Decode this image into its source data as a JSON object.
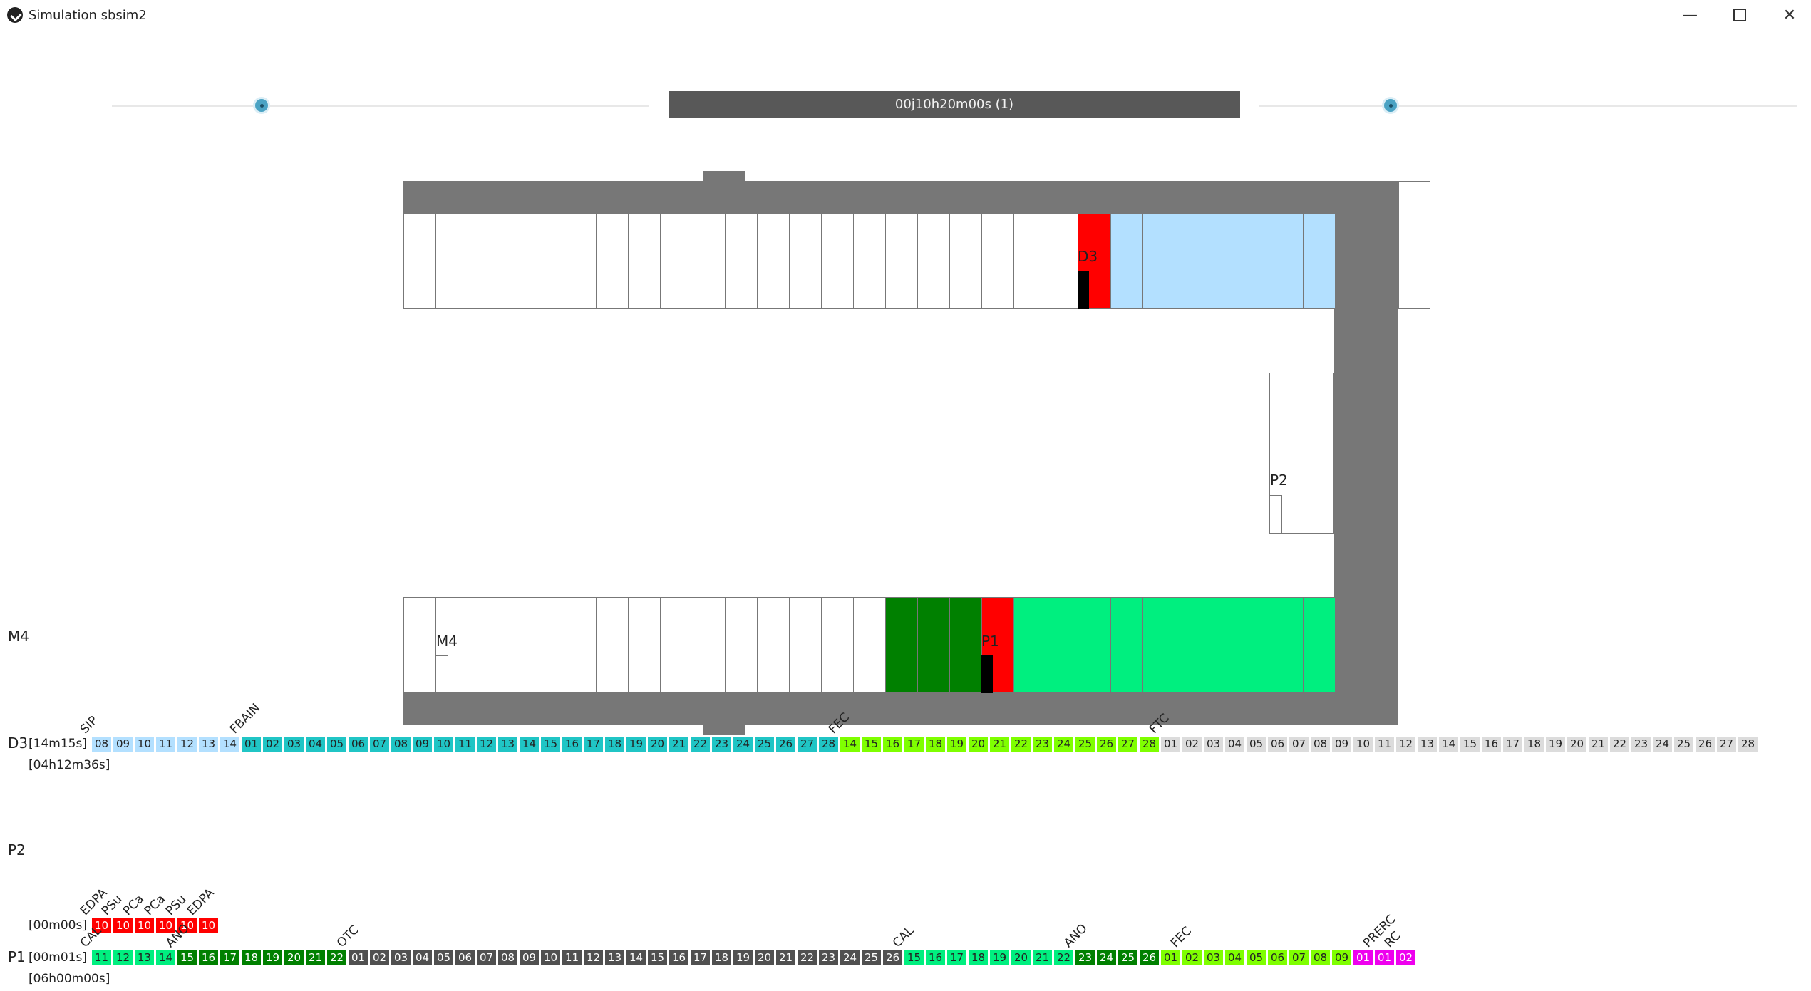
{
  "window": {
    "title": "Simulation sbsim2"
  },
  "controls": {
    "time_display": "00j10h20m00s (1)"
  },
  "plant": {
    "labels": {
      "d3": "D3",
      "p2": "P2",
      "m4": "M4",
      "p1": "P1"
    },
    "colors": {
      "wall": "#777777",
      "red": "#ff0000",
      "light_blue": "#b3e0ff",
      "dark_green": "#008000",
      "bright_green": "#00ef7f"
    }
  },
  "rows": {
    "m4": {
      "label": "M4"
    },
    "d3": {
      "label": "D3",
      "time1": "[14m15s]",
      "time2": "[04h12m36s]",
      "markers": [
        {
          "text": "SIP",
          "at": 0
        },
        {
          "text": "FBAIN",
          "at": 7
        },
        {
          "text": "FEC",
          "at": 35
        },
        {
          "text": "FTC",
          "at": 50
        }
      ],
      "tiles": [
        {
          "t": "08",
          "c": "#b3e0ff"
        },
        {
          "t": "09",
          "c": "#b3e0ff"
        },
        {
          "t": "10",
          "c": "#b3e0ff"
        },
        {
          "t": "11",
          "c": "#b3e0ff"
        },
        {
          "t": "12",
          "c": "#b3e0ff"
        },
        {
          "t": "13",
          "c": "#b3e0ff"
        },
        {
          "t": "14",
          "c": "#b3e0ff"
        },
        {
          "t": "01",
          "c": "#20c5c5"
        },
        {
          "t": "02",
          "c": "#20c5c5"
        },
        {
          "t": "03",
          "c": "#20c5c5"
        },
        {
          "t": "04",
          "c": "#20c5c5"
        },
        {
          "t": "05",
          "c": "#20c5c5"
        },
        {
          "t": "06",
          "c": "#20c5c5"
        },
        {
          "t": "07",
          "c": "#20c5c5"
        },
        {
          "t": "08",
          "c": "#20c5c5"
        },
        {
          "t": "09",
          "c": "#20c5c5"
        },
        {
          "t": "10",
          "c": "#20c5c5"
        },
        {
          "t": "11",
          "c": "#20c5c5"
        },
        {
          "t": "12",
          "c": "#20c5c5"
        },
        {
          "t": "13",
          "c": "#20c5c5"
        },
        {
          "t": "14",
          "c": "#20c5c5"
        },
        {
          "t": "15",
          "c": "#20c5c5"
        },
        {
          "t": "16",
          "c": "#20c5c5"
        },
        {
          "t": "17",
          "c": "#20c5c5"
        },
        {
          "t": "18",
          "c": "#20c5c5"
        },
        {
          "t": "19",
          "c": "#20c5c5"
        },
        {
          "t": "20",
          "c": "#20c5c5"
        },
        {
          "t": "21",
          "c": "#20c5c5"
        },
        {
          "t": "22",
          "c": "#20c5c5"
        },
        {
          "t": "23",
          "c": "#20c5c5"
        },
        {
          "t": "24",
          "c": "#20c5c5"
        },
        {
          "t": "25",
          "c": "#20c5c5"
        },
        {
          "t": "26",
          "c": "#20c5c5"
        },
        {
          "t": "27",
          "c": "#20c5c5"
        },
        {
          "t": "28",
          "c": "#20c5c5"
        },
        {
          "t": "14",
          "c": "#7fff00"
        },
        {
          "t": "15",
          "c": "#7fff00"
        },
        {
          "t": "16",
          "c": "#7fff00"
        },
        {
          "t": "17",
          "c": "#7fff00"
        },
        {
          "t": "18",
          "c": "#7fff00"
        },
        {
          "t": "19",
          "c": "#7fff00"
        },
        {
          "t": "20",
          "c": "#7fff00"
        },
        {
          "t": "21",
          "c": "#7fff00"
        },
        {
          "t": "22",
          "c": "#7fff00"
        },
        {
          "t": "23",
          "c": "#7fff00"
        },
        {
          "t": "24",
          "c": "#7fff00"
        },
        {
          "t": "25",
          "c": "#7fff00"
        },
        {
          "t": "26",
          "c": "#7fff00"
        },
        {
          "t": "27",
          "c": "#7fff00"
        },
        {
          "t": "28",
          "c": "#7fff00"
        },
        {
          "t": "01",
          "c": "#dcdcdc"
        },
        {
          "t": "02",
          "c": "#dcdcdc"
        },
        {
          "t": "03",
          "c": "#dcdcdc"
        },
        {
          "t": "04",
          "c": "#dcdcdc"
        },
        {
          "t": "05",
          "c": "#dcdcdc"
        },
        {
          "t": "06",
          "c": "#dcdcdc"
        },
        {
          "t": "07",
          "c": "#dcdcdc"
        },
        {
          "t": "08",
          "c": "#dcdcdc"
        },
        {
          "t": "09",
          "c": "#dcdcdc"
        },
        {
          "t": "10",
          "c": "#dcdcdc"
        },
        {
          "t": "11",
          "c": "#dcdcdc"
        },
        {
          "t": "12",
          "c": "#dcdcdc"
        },
        {
          "t": "13",
          "c": "#dcdcdc"
        },
        {
          "t": "14",
          "c": "#dcdcdc"
        },
        {
          "t": "15",
          "c": "#dcdcdc"
        },
        {
          "t": "16",
          "c": "#dcdcdc"
        },
        {
          "t": "17",
          "c": "#dcdcdc"
        },
        {
          "t": "18",
          "c": "#dcdcdc"
        },
        {
          "t": "19",
          "c": "#dcdcdc"
        },
        {
          "t": "20",
          "c": "#dcdcdc"
        },
        {
          "t": "21",
          "c": "#dcdcdc"
        },
        {
          "t": "22",
          "c": "#dcdcdc"
        },
        {
          "t": "23",
          "c": "#dcdcdc"
        },
        {
          "t": "24",
          "c": "#dcdcdc"
        },
        {
          "t": "25",
          "c": "#dcdcdc"
        },
        {
          "t": "26",
          "c": "#dcdcdc"
        },
        {
          "t": "27",
          "c": "#dcdcdc"
        },
        {
          "t": "28",
          "c": "#dcdcdc"
        }
      ]
    },
    "p2": {
      "label": "P2",
      "time1": "[00m00s]",
      "markers": [
        {
          "text": "EDPA",
          "at": 0
        },
        {
          "text": "PSu",
          "at": 1
        },
        {
          "text": "PCa",
          "at": 2
        },
        {
          "text": "PCa",
          "at": 3
        },
        {
          "text": "PSu",
          "at": 4
        },
        {
          "text": "EDPA",
          "at": 5
        }
      ],
      "tiles": [
        {
          "t": "10",
          "c": "#ff0000"
        },
        {
          "t": "10",
          "c": "#ff0000"
        },
        {
          "t": "10",
          "c": "#ff0000"
        },
        {
          "t": "10",
          "c": "#ff0000"
        },
        {
          "t": "10",
          "c": "#ff0000"
        },
        {
          "t": "10",
          "c": "#ff0000"
        }
      ]
    },
    "p1": {
      "label": "P1",
      "time1": "[00m01s]",
      "time2": "[06h00m00s]",
      "markers": [
        {
          "text": "CAL",
          "at": 0
        },
        {
          "text": "ANO",
          "at": 4
        },
        {
          "text": "OTC",
          "at": 12
        },
        {
          "text": "CAL",
          "at": 38
        },
        {
          "text": "ANO",
          "at": 46
        },
        {
          "text": "FEC",
          "at": 51
        },
        {
          "text": "PRERC",
          "at": 60
        },
        {
          "text": "RC",
          "at": 61
        }
      ],
      "tiles": [
        {
          "t": "11",
          "c": "#00ef7f"
        },
        {
          "t": "12",
          "c": "#00ef7f"
        },
        {
          "t": "13",
          "c": "#00ef7f"
        },
        {
          "t": "14",
          "c": "#00ef7f"
        },
        {
          "t": "15",
          "c": "#008000"
        },
        {
          "t": "16",
          "c": "#008000"
        },
        {
          "t": "17",
          "c": "#008000"
        },
        {
          "t": "18",
          "c": "#008000"
        },
        {
          "t": "19",
          "c": "#008000"
        },
        {
          "t": "20",
          "c": "#008000"
        },
        {
          "t": "21",
          "c": "#008000"
        },
        {
          "t": "22",
          "c": "#008000"
        },
        {
          "t": "01",
          "c": "#505050"
        },
        {
          "t": "02",
          "c": "#505050"
        },
        {
          "t": "03",
          "c": "#505050"
        },
        {
          "t": "04",
          "c": "#505050"
        },
        {
          "t": "05",
          "c": "#505050"
        },
        {
          "t": "06",
          "c": "#505050"
        },
        {
          "t": "07",
          "c": "#505050"
        },
        {
          "t": "08",
          "c": "#505050"
        },
        {
          "t": "09",
          "c": "#505050"
        },
        {
          "t": "10",
          "c": "#505050"
        },
        {
          "t": "11",
          "c": "#505050"
        },
        {
          "t": "12",
          "c": "#505050"
        },
        {
          "t": "13",
          "c": "#505050"
        },
        {
          "t": "14",
          "c": "#505050"
        },
        {
          "t": "15",
          "c": "#505050"
        },
        {
          "t": "16",
          "c": "#505050"
        },
        {
          "t": "17",
          "c": "#505050"
        },
        {
          "t": "18",
          "c": "#505050"
        },
        {
          "t": "19",
          "c": "#505050"
        },
        {
          "t": "20",
          "c": "#505050"
        },
        {
          "t": "21",
          "c": "#505050"
        },
        {
          "t": "22",
          "c": "#505050"
        },
        {
          "t": "23",
          "c": "#505050"
        },
        {
          "t": "24",
          "c": "#505050"
        },
        {
          "t": "25",
          "c": "#505050"
        },
        {
          "t": "26",
          "c": "#505050"
        },
        {
          "t": "15",
          "c": "#00ef7f"
        },
        {
          "t": "16",
          "c": "#00ef7f"
        },
        {
          "t": "17",
          "c": "#00ef7f"
        },
        {
          "t": "18",
          "c": "#00ef7f"
        },
        {
          "t": "19",
          "c": "#00ef7f"
        },
        {
          "t": "20",
          "c": "#00ef7f"
        },
        {
          "t": "21",
          "c": "#00ef7f"
        },
        {
          "t": "22",
          "c": "#00ef7f"
        },
        {
          "t": "23",
          "c": "#008000"
        },
        {
          "t": "24",
          "c": "#008000"
        },
        {
          "t": "25",
          "c": "#008000"
        },
        {
          "t": "26",
          "c": "#008000"
        },
        {
          "t": "01",
          "c": "#7fff00"
        },
        {
          "t": "02",
          "c": "#7fff00"
        },
        {
          "t": "03",
          "c": "#7fff00"
        },
        {
          "t": "04",
          "c": "#7fff00"
        },
        {
          "t": "05",
          "c": "#7fff00"
        },
        {
          "t": "06",
          "c": "#7fff00"
        },
        {
          "t": "07",
          "c": "#7fff00"
        },
        {
          "t": "08",
          "c": "#7fff00"
        },
        {
          "t": "09",
          "c": "#7fff00"
        },
        {
          "t": "01",
          "c": "#ee00ee"
        },
        {
          "t": "01",
          "c": "#ee00ee"
        },
        {
          "t": "02",
          "c": "#ee00ee"
        }
      ]
    }
  }
}
